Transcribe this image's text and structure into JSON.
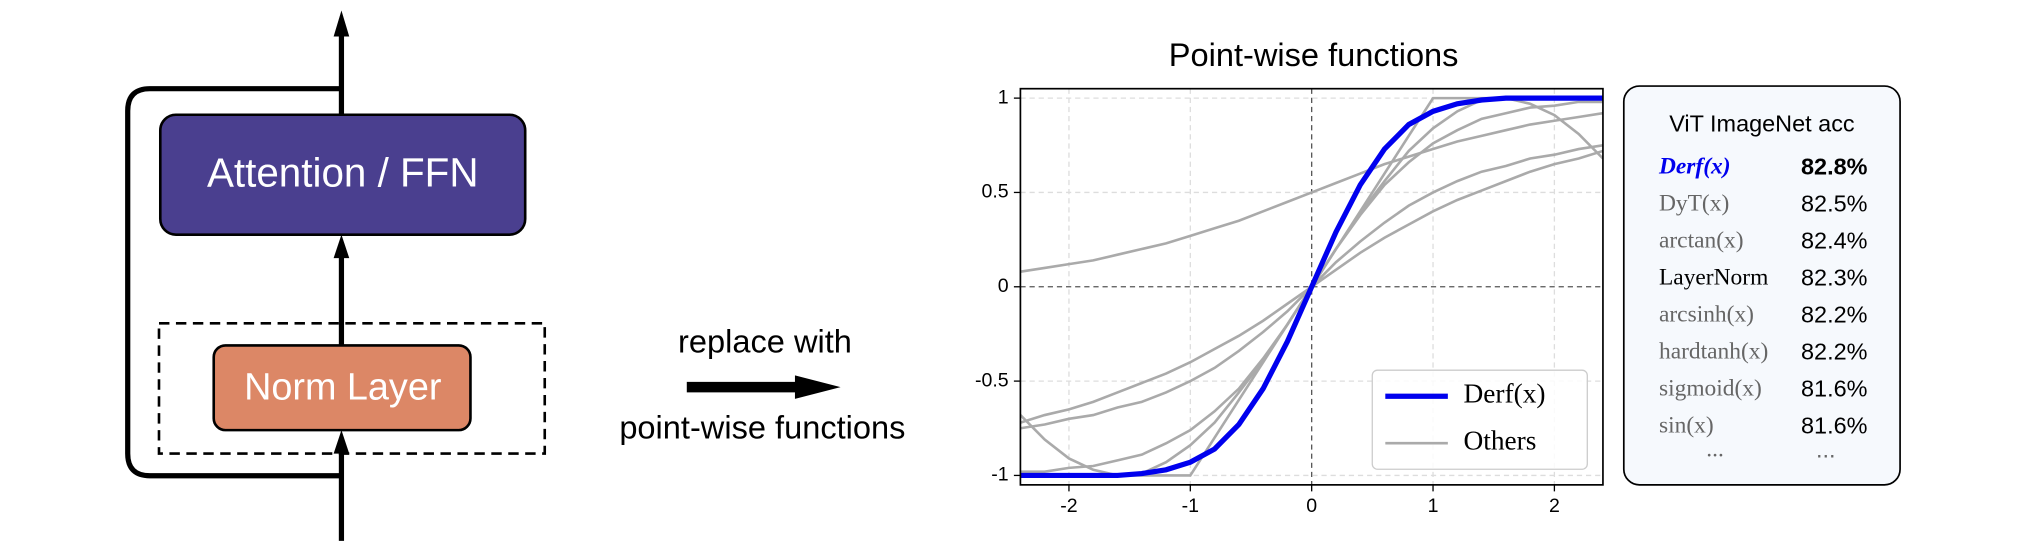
{
  "diagram": {
    "block_top": "Attention / FFN",
    "block_bottom": "Norm Layer",
    "caption": [
      "replace with",
      "point-wise functions"
    ]
  },
  "chart_data": {
    "type": "line",
    "title": "Point-wise functions",
    "x": [
      -2.4,
      -2.2,
      -2,
      -1.8,
      -1.6,
      -1.4,
      -1.2,
      -1,
      -0.8,
      -0.6,
      -0.4,
      -0.2,
      0,
      0.2,
      0.4,
      0.6,
      0.8,
      1,
      1.2,
      1.4,
      1.6,
      1.8,
      2,
      2.2,
      2.4
    ],
    "series": [
      {
        "name": "Derf(x)",
        "color": "#0000ee",
        "values": [
          -1,
          -1,
          -1,
          -1,
          -1,
          -0.99,
          -0.97,
          -0.93,
          -0.86,
          -0.73,
          -0.54,
          -0.29,
          0,
          0.29,
          0.54,
          0.73,
          0.86,
          0.93,
          0.97,
          0.99,
          1,
          1,
          1,
          1,
          1
        ]
      },
      {
        "name": "Others",
        "color": "#aaaaaa",
        "values": [
          [
            -0.98,
            -0.98,
            -0.96,
            -0.95,
            -0.92,
            -0.89,
            -0.83,
            -0.76,
            -0.66,
            -0.54,
            -0.38,
            -0.2,
            0,
            0.2,
            0.38,
            0.54,
            0.66,
            0.76,
            0.83,
            0.89,
            0.92,
            0.95,
            0.96,
            0.98,
            0.98
          ],
          [
            -1,
            -1,
            -1,
            -1,
            -1,
            -1,
            -1,
            -1,
            -0.8,
            -0.6,
            -0.4,
            -0.2,
            0,
            0.2,
            0.4,
            0.6,
            0.8,
            1,
            1,
            1,
            1,
            1,
            1,
            1,
            1
          ],
          [
            -0.75,
            -0.73,
            -0.7,
            -0.68,
            -0.64,
            -0.61,
            -0.56,
            -0.5,
            -0.43,
            -0.34,
            -0.24,
            -0.13,
            0,
            0.13,
            0.24,
            0.34,
            0.43,
            0.5,
            0.56,
            0.61,
            0.64,
            0.68,
            0.7,
            0.73,
            0.75
          ],
          [
            -0.68,
            -0.81,
            -0.91,
            -0.97,
            -1,
            -0.99,
            -0.93,
            -0.84,
            -0.72,
            -0.56,
            -0.39,
            -0.2,
            0,
            0.2,
            0.39,
            0.56,
            0.72,
            0.84,
            0.93,
            0.99,
            1,
            0.97,
            0.91,
            0.81,
            0.68
          ],
          [
            -0.72,
            -0.68,
            -0.65,
            -0.61,
            -0.56,
            -0.51,
            -0.46,
            -0.4,
            -0.33,
            -0.26,
            -0.18,
            -0.09,
            0,
            0.09,
            0.18,
            0.26,
            0.33,
            0.4,
            0.46,
            0.51,
            0.56,
            0.61,
            0.65,
            0.68,
            0.72
          ],
          [
            0.08,
            0.1,
            0.12,
            0.14,
            0.17,
            0.2,
            0.23,
            0.27,
            0.31,
            0.35,
            0.4,
            0.45,
            0.5,
            0.55,
            0.6,
            0.65,
            0.69,
            0.73,
            0.77,
            0.8,
            0.83,
            0.86,
            0.88,
            0.9,
            0.92
          ]
        ]
      }
    ],
    "xlim": [
      -2.4,
      2.4
    ],
    "ylim": [
      -1.05,
      1.05
    ],
    "xticks": [
      -2,
      -1,
      0,
      1,
      2
    ],
    "yticks": [
      -1,
      -0.5,
      0,
      0.5,
      1
    ],
    "grid": true,
    "legend": "lower right"
  },
  "table": {
    "title": "ViT ImageNet acc",
    "rows": [
      [
        "Derf(x)",
        "82.8%"
      ],
      [
        "DyT(x)",
        "82.5%"
      ],
      [
        "arctan(x)",
        "82.4%"
      ],
      [
        "LayerNorm",
        "82.3%"
      ],
      [
        "arcsinh(x)",
        "82.2%"
      ],
      [
        "hardtanh(x)",
        "82.2%"
      ],
      [
        "sigmoid(x)",
        "81.6%"
      ],
      [
        "sin(x)",
        "81.6%"
      ],
      [
        "...",
        "..."
      ]
    ]
  }
}
